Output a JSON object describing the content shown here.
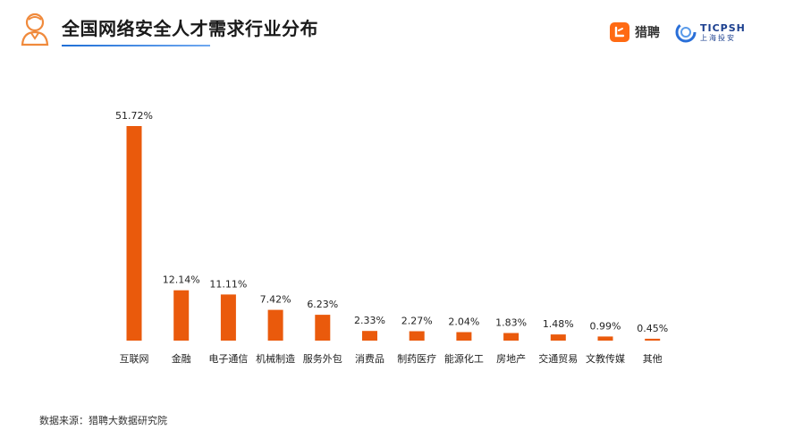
{
  "header": {
    "title": "全国网络安全人才需求行业分布",
    "icon": "person-icon",
    "accent_color": "#1f6fd6"
  },
  "brands": {
    "liepin_name": "猎聘",
    "ticpsh_en": "TICPSH",
    "ticpsh_cn": "上海投安"
  },
  "chart_data": {
    "type": "bar",
    "title": "全国网络安全人才需求行业分布",
    "categories": [
      "互联网",
      "金融",
      "电子通信",
      "机械制造",
      "服务外包",
      "消费品",
      "制药医疗",
      "能源化工",
      "房地产",
      "交通贸易",
      "文教传媒",
      "其他"
    ],
    "values": [
      51.72,
      12.14,
      11.11,
      7.42,
      6.23,
      2.33,
      2.27,
      2.04,
      1.83,
      1.48,
      0.99,
      0.45
    ],
    "labels": [
      "51.72%",
      "12.14%",
      "11.11%",
      "7.42%",
      "6.23%",
      "2.33%",
      "2.27%",
      "2.04%",
      "1.83%",
      "1.48%",
      "0.99%",
      "0.45%"
    ],
    "unit": "%",
    "bar_color": "#ea5a0c",
    "ylim": [
      0,
      51.72
    ],
    "grid": false,
    "legend": "none"
  },
  "footer": {
    "source": "数据来源：猎聘大数据研究院"
  }
}
